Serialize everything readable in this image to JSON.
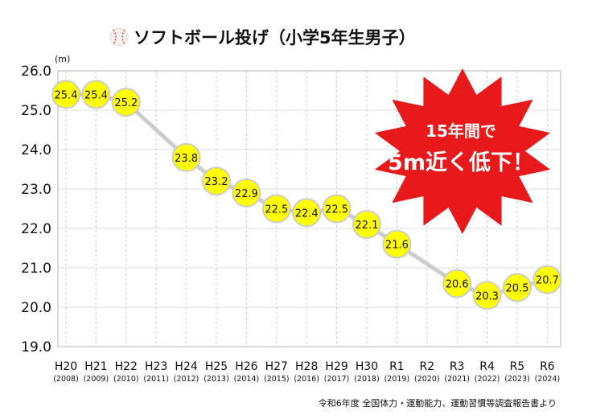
{
  "chart_data": {
    "type": "line",
    "title": "ソフトボール投げ（小学5年生男子）",
    "ylabel": "(m)",
    "xlabel": "",
    "ylim": [
      19.0,
      26.0
    ],
    "yticks": [
      "19.0",
      "20.0",
      "21.0",
      "22.0",
      "23.0",
      "24.0",
      "25.0",
      "26.0"
    ],
    "categories": [
      "H20",
      "H21",
      "H22",
      "H23",
      "H24",
      "H25",
      "H26",
      "H27",
      "H28",
      "H29",
      "H30",
      "R1",
      "R2",
      "R3",
      "R4",
      "R5",
      "R6"
    ],
    "category_years": [
      "(2008)",
      "(2009)",
      "(2010)",
      "(2011)",
      "(2012)",
      "(2013)",
      "(2014)",
      "(2015)",
      "(2016)",
      "(2017)",
      "(2018)",
      "(2019)",
      "(2020)",
      "(2021)",
      "(2022)",
      "(2023)",
      "(2024)"
    ],
    "series": [
      {
        "name": "ソフトボール投げ",
        "values": [
          25.4,
          25.4,
          25.2,
          null,
          23.8,
          23.2,
          22.9,
          22.5,
          22.4,
          22.5,
          22.1,
          21.6,
          null,
          20.6,
          20.3,
          20.5,
          20.7
        ]
      }
    ],
    "grid": true,
    "annotation": {
      "line1": "15年間で",
      "line2": "5m近く低下！"
    },
    "source": "令和6年度 全国体力・運動能力、運動習慣等調査報告書より",
    "colors": {
      "marker": "#ffff00",
      "line": "#cccccc",
      "burst": "#e8191a"
    }
  }
}
